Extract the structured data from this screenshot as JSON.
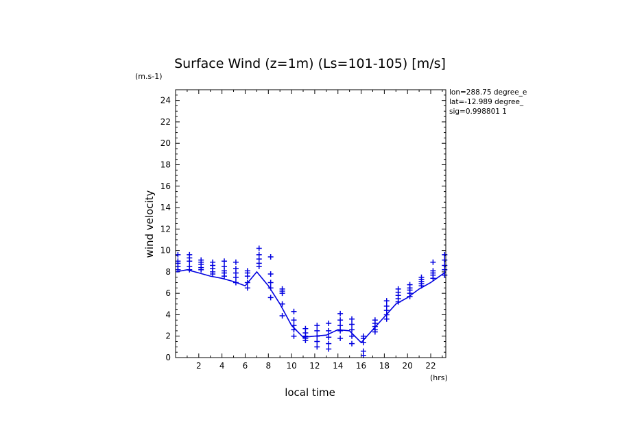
{
  "chart_data": {
    "type": "scatter",
    "title": "Surface Wind (z=1m) (Ls=101-105) [m/s]",
    "xlabel": "local time",
    "ylabel": "wind velocity",
    "x_unit": "(hrs)",
    "y_unit": "(m.s-1)",
    "xlim": [
      0,
      23.3
    ],
    "ylim": [
      0,
      25
    ],
    "x_ticks": [
      2,
      4,
      6,
      8,
      10,
      12,
      14,
      16,
      18,
      20,
      22
    ],
    "y_ticks": [
      0,
      2,
      4,
      6,
      8,
      10,
      12,
      14,
      16,
      18,
      20,
      22,
      24
    ],
    "info": [
      "lon=288.75 degree_e",
      "lat=-12.989 degree_",
      "sig=0.998801 1"
    ],
    "color": "#0000e0",
    "series": [
      {
        "kind": "line",
        "x": [
          0,
          1,
          2,
          3,
          4,
          5,
          6,
          7,
          8,
          9,
          10,
          11,
          12,
          13,
          14,
          15,
          16,
          17,
          18,
          19,
          20,
          21,
          22,
          23.3
        ],
        "values": [
          8.0,
          8.2,
          7.9,
          7.6,
          7.4,
          7.1,
          6.7,
          8.0,
          6.7,
          5.0,
          3.0,
          1.9,
          2.0,
          2.1,
          2.6,
          2.5,
          1.4,
          2.6,
          3.8,
          5.0,
          5.6,
          6.4,
          7.0,
          8.0
        ]
      },
      {
        "kind": "markers",
        "x": [
          0.2,
          0.2,
          0.2,
          0.2,
          0.2,
          1.2,
          1.2,
          1.2,
          1.2,
          1.2,
          2.2,
          2.2,
          2.2,
          2.2,
          2.2,
          3.2,
          3.2,
          3.2,
          3.2,
          3.2,
          4.2,
          4.2,
          4.2,
          4.2,
          4.2,
          5.2,
          5.2,
          5.2,
          5.2,
          5.2,
          6.2,
          6.2,
          6.2,
          6.2,
          6.2,
          7.2,
          7.2,
          7.2,
          7.2,
          7.2,
          8.2,
          8.2,
          8.2,
          8.2,
          8.2,
          9.2,
          9.2,
          9.2,
          9.2,
          9.2,
          10.2,
          10.2,
          10.2,
          10.2,
          10.2,
          11.2,
          11.2,
          11.2,
          11.2,
          11.2,
          12.2,
          12.2,
          12.2,
          12.2,
          12.2,
          13.2,
          13.2,
          13.2,
          13.2,
          13.2,
          14.2,
          14.2,
          14.2,
          14.2,
          14.2,
          15.2,
          15.2,
          15.2,
          15.2,
          15.2,
          16.2,
          16.2,
          16.2,
          16.2,
          16.2,
          17.2,
          17.2,
          17.2,
          17.2,
          17.2,
          18.2,
          18.2,
          18.2,
          18.2,
          18.2,
          19.2,
          19.2,
          19.2,
          19.2,
          19.2,
          20.2,
          20.2,
          20.2,
          20.2,
          20.2,
          21.2,
          21.2,
          21.2,
          21.2,
          21.2,
          22.2,
          22.2,
          22.2,
          22.2,
          22.2,
          23.2,
          23.2,
          23.2,
          23.2,
          23.2
        ],
        "values": [
          8.5,
          8.8,
          9.0,
          9.6,
          8.2,
          8.5,
          9.0,
          9.3,
          9.6,
          8.2,
          8.4,
          8.7,
          8.9,
          9.1,
          8.2,
          8.0,
          8.3,
          8.6,
          8.9,
          7.8,
          7.6,
          7.9,
          8.1,
          8.5,
          9.0,
          7.0,
          7.5,
          7.9,
          8.3,
          8.9,
          6.5,
          7.0,
          7.6,
          7.9,
          8.1,
          8.5,
          8.8,
          9.2,
          9.6,
          10.2,
          5.6,
          6.5,
          7.0,
          7.8,
          9.4,
          3.9,
          5.0,
          6.0,
          6.2,
          6.4,
          2.0,
          2.6,
          3.0,
          3.5,
          4.3,
          1.6,
          1.8,
          2.0,
          2.3,
          2.7,
          1.0,
          1.5,
          2.0,
          2.5,
          3.0,
          0.8,
          1.3,
          1.9,
          2.5,
          3.2,
          1.8,
          2.5,
          3.0,
          3.5,
          4.1,
          1.3,
          2.0,
          2.6,
          3.1,
          3.6,
          0.2,
          0.6,
          1.4,
          1.8,
          2.0,
          2.4,
          2.6,
          2.9,
          3.2,
          3.5,
          3.6,
          4.0,
          4.4,
          4.8,
          5.3,
          5.2,
          5.5,
          5.8,
          6.1,
          6.4,
          5.7,
          6.0,
          6.3,
          6.5,
          6.8,
          6.7,
          6.9,
          7.1,
          7.3,
          7.5,
          7.4,
          7.7,
          7.9,
          8.1,
          8.9,
          7.7,
          8.2,
          8.6,
          9.1,
          9.6
        ]
      }
    ]
  }
}
